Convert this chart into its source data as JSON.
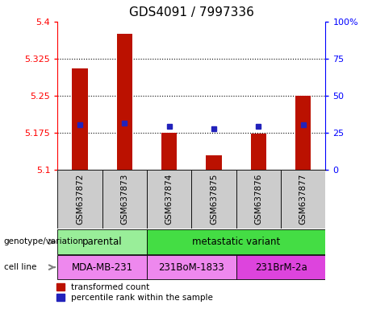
{
  "title": "GDS4091 / 7997336",
  "samples": [
    "GSM637872",
    "GSM637873",
    "GSM637874",
    "GSM637875",
    "GSM637876",
    "GSM637877"
  ],
  "red_values": [
    5.305,
    5.375,
    5.175,
    5.13,
    5.173,
    5.25
  ],
  "blue_values": [
    5.192,
    5.194,
    5.188,
    5.184,
    5.188,
    5.191
  ],
  "ylim": [
    5.1,
    5.4
  ],
  "yticks": [
    5.1,
    5.175,
    5.25,
    5.325,
    5.4
  ],
  "right_yticks": [
    0,
    25,
    50,
    75,
    100
  ],
  "grid_lines": [
    5.175,
    5.25,
    5.325
  ],
  "genotype_groups": [
    {
      "label": "parental",
      "span": [
        0,
        2
      ],
      "color": "#99EE99"
    },
    {
      "label": "metastatic variant",
      "span": [
        2,
        6
      ],
      "color": "#44DD44"
    }
  ],
  "cell_line_groups": [
    {
      "label": "MDA-MB-231",
      "span": [
        0,
        2
      ],
      "color": "#EE88EE"
    },
    {
      "label": "231BoM-1833",
      "span": [
        2,
        4
      ],
      "color": "#EE88EE"
    },
    {
      "label": "231BrM-2a",
      "span": [
        4,
        6
      ],
      "color": "#DD44DD"
    }
  ],
  "bar_color": "#BB1100",
  "dot_color": "#2222BB",
  "bg_color": "#CCCCCC",
  "legend_items": [
    {
      "color": "#BB1100",
      "label": "transformed count"
    },
    {
      "color": "#2222BB",
      "label": "percentile rank within the sample"
    }
  ]
}
